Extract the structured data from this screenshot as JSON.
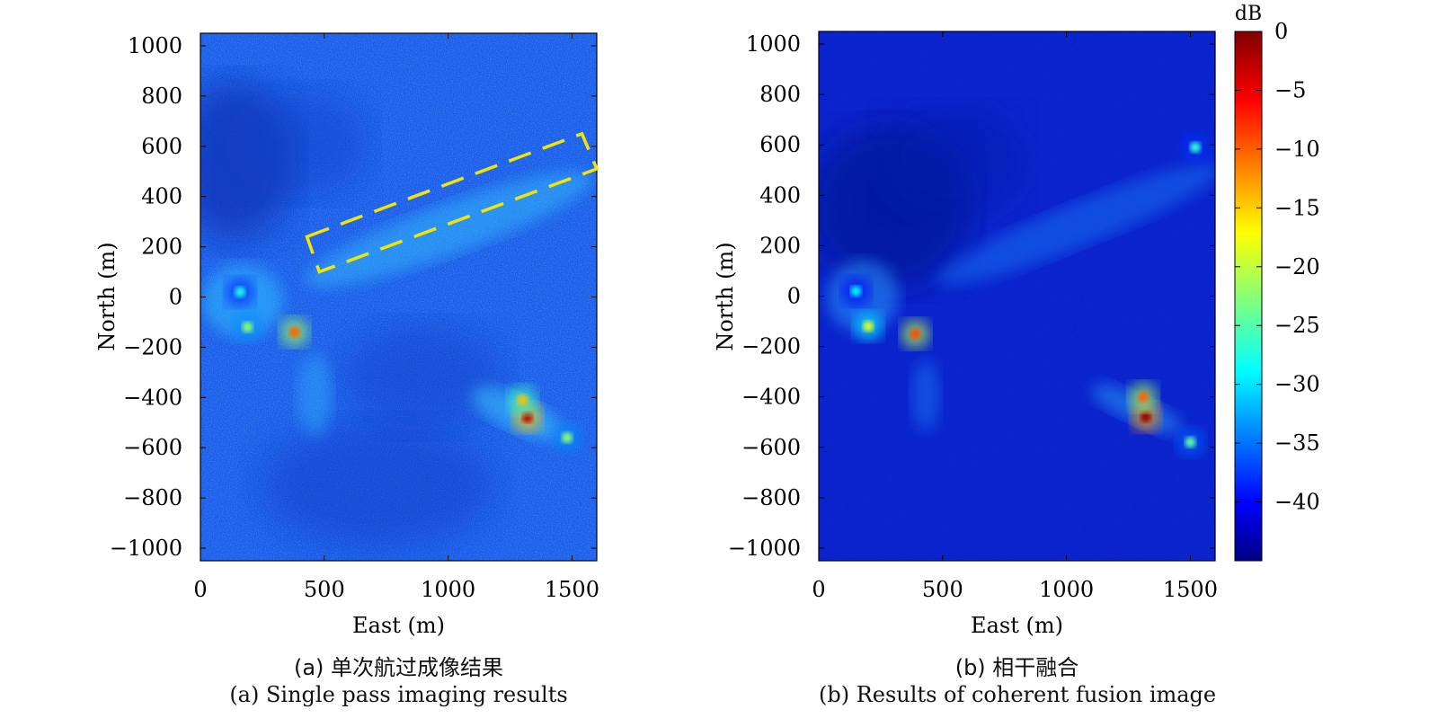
{
  "figure": {
    "colorbar": {
      "unit": "dB",
      "range": [
        -45,
        0
      ],
      "ticks": [
        0,
        -5,
        -10,
        -15,
        -20,
        -25,
        -30,
        -35,
        -40
      ],
      "colormap": "jet"
    },
    "box_color": "#f2e600"
  },
  "chart_data": [
    {
      "type": "heatmap",
      "title": "",
      "caption_zh": "(a) 单次航过成像结果",
      "caption_en": "(a) Single pass imaging results",
      "xlabel": "East (m)",
      "ylabel": "North (m)",
      "xlim": [
        0,
        1600
      ],
      "ylim": [
        -1050,
        1050
      ],
      "xticks": [
        0,
        500,
        1000,
        1500
      ],
      "yticks": [
        1000,
        800,
        600,
        400,
        200,
        0,
        -200,
        -400,
        -600,
        -800,
        -1000
      ],
      "value_unit": "dB",
      "background_level_db": -36,
      "hotspots": [
        {
          "east": 1320,
          "north": -480,
          "db": -3
        },
        {
          "east": 1300,
          "north": -410,
          "db": -14
        },
        {
          "east": 380,
          "north": -140,
          "db": -10
        },
        {
          "east": 190,
          "north": -120,
          "db": -22
        },
        {
          "east": 160,
          "north": 20,
          "db": -27
        },
        {
          "east": 1480,
          "north": -560,
          "db": -22
        }
      ],
      "annotation": {
        "type": "dashed-rectangle",
        "corners": [
          [
            430,
            240
          ],
          [
            1540,
            650
          ],
          [
            1600,
            510
          ],
          [
            480,
            100
          ]
        ]
      }
    },
    {
      "type": "heatmap",
      "title": "",
      "caption_zh": "(b) 相干融合",
      "caption_en": "(b) Results of coherent fusion image",
      "xlabel": "East (m)",
      "ylabel": "North (m)",
      "xlim": [
        0,
        1600
      ],
      "ylim": [
        -1050,
        1050
      ],
      "xticks": [
        0,
        500,
        1000,
        1500
      ],
      "yticks": [
        1000,
        800,
        600,
        400,
        200,
        0,
        -200,
        -400,
        -600,
        -800,
        -1000
      ],
      "value_unit": "dB",
      "background_level_db": -41,
      "hotspots": [
        {
          "east": 1320,
          "north": -480,
          "db": -1
        },
        {
          "east": 1310,
          "north": -400,
          "db": -10
        },
        {
          "east": 390,
          "north": -150,
          "db": -9
        },
        {
          "east": 200,
          "north": -120,
          "db": -18
        },
        {
          "east": 150,
          "north": 20,
          "db": -28
        },
        {
          "east": 1500,
          "north": -580,
          "db": -24
        },
        {
          "east": 1520,
          "north": 590,
          "db": -26
        }
      ]
    }
  ]
}
